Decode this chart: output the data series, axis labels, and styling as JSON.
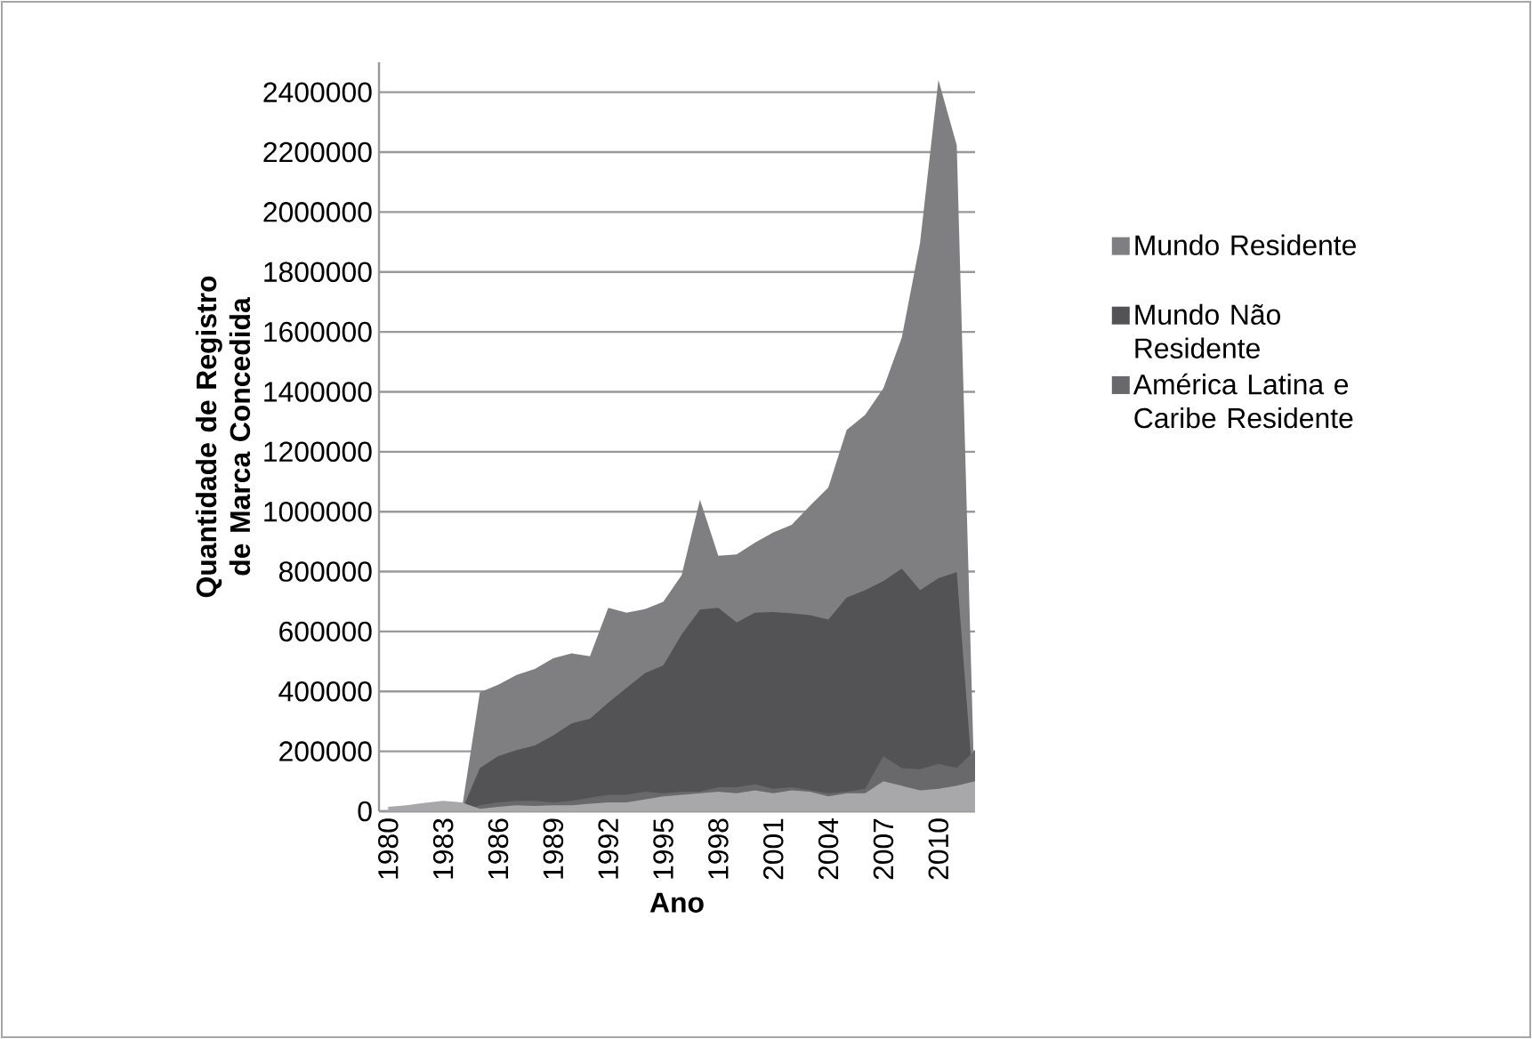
{
  "chart_data": {
    "type": "area",
    "xlabel": "Ano",
    "ylabel": "Quantidade de Registro de Marca Concedida",
    "categories": [
      "1980",
      null,
      null,
      "1983",
      null,
      null,
      "1986",
      null,
      null,
      "1989",
      null,
      null,
      "1992",
      null,
      null,
      "1995",
      null,
      null,
      "1998",
      null,
      null,
      "2001",
      null,
      null,
      "2004",
      null,
      null,
      "2007",
      null,
      null,
      "2010",
      null,
      null
    ],
    "series": [
      {
        "name": "Mundo Residente",
        "color": "#7f7f82",
        "values": [
          0,
          0,
          0,
          0,
          0,
          397000,
          422000,
          455000,
          475000,
          511000,
          527000,
          517000,
          679000,
          663000,
          675000,
          699000,
          788000,
          1040000,
          853000,
          857000,
          897000,
          931000,
          956000,
          1020000,
          1081000,
          1273000,
          1323000,
          1412000,
          1580000,
          1897000,
          2441000,
          2223000,
          0
        ]
      },
      {
        "name": "Mundo Não Residente",
        "color": "#535356",
        "values": [
          0,
          0,
          0,
          0,
          0,
          144000,
          184000,
          204000,
          220000,
          253000,
          293000,
          309000,
          362000,
          412000,
          461000,
          487000,
          590000,
          673000,
          679000,
          630000,
          663000,
          665000,
          661000,
          655000,
          640000,
          713000,
          738000,
          768000,
          810000,
          738000,
          778000,
          798000,
          0
        ]
      },
      {
        "name": "América Latina e Caribe Residente",
        "color": "#69696c",
        "values": [
          0,
          0,
          0,
          0,
          0,
          20000,
          30000,
          35000,
          35000,
          30000,
          35000,
          45000,
          55000,
          55000,
          65000,
          60000,
          65000,
          65000,
          80000,
          80000,
          90000,
          75000,
          80000,
          70000,
          60000,
          65000,
          75000,
          184000,
          144000,
          140000,
          158000,
          145000,
          204000
        ]
      },
      {
        "color": "#a8a8ab",
        "values": [
          15000,
          20000,
          28000,
          35000,
          30000,
          8000,
          15000,
          20000,
          18000,
          20000,
          20000,
          25000,
          30000,
          30000,
          40000,
          50000,
          55000,
          60000,
          65000,
          60000,
          70000,
          60000,
          70000,
          65000,
          50000,
          60000,
          60000,
          100000,
          85000,
          70000,
          75000,
          85000,
          100000
        ]
      }
    ],
    "ylim": [
      0,
      2500000
    ],
    "yticks": [
      0,
      200000,
      400000,
      600000,
      800000,
      1000000,
      1200000,
      1400000,
      1600000,
      1800000,
      2000000,
      2200000,
      2400000
    ],
    "grid": "y",
    "legend": "right"
  }
}
